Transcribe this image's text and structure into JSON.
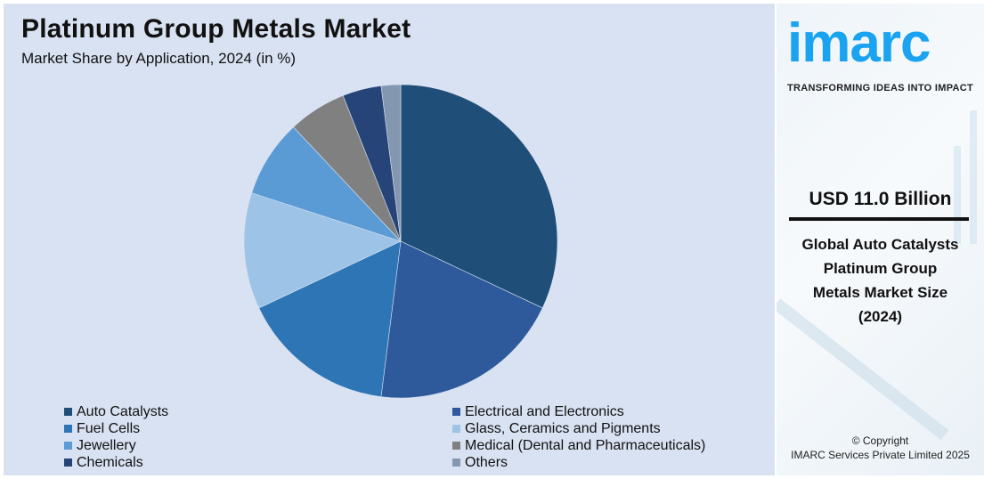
{
  "header": {
    "title": "Platinum Group Metals Market",
    "subtitle": "Market Share by Application, 2024 (in %)"
  },
  "sidebar": {
    "logo": "imarc",
    "tagline": "TRANSFORMING IDEAS INTO IMPACT",
    "value": "USD 11.0 Billion",
    "description_lines": [
      "Global Auto Catalysts",
      "Platinum Group",
      "Metals Market Size",
      "(2024)"
    ],
    "copyright_line1": "© Copyright",
    "copyright_line2": "IMARC Services Private Limited 2025",
    "accent_color": "#1aa3f0"
  },
  "chart_data": {
    "type": "pie",
    "title": "Platinum Group Metals Market",
    "subtitle": "Market Share by Application, 2024 (in %)",
    "categories": [
      "Auto Catalysts",
      "Electrical and Electronics",
      "Fuel Cells",
      "Glass, Ceramics and Pigments",
      "Jewellery",
      "Medical (Dental and Pharmaceuticals)",
      "Chemicals",
      "Others"
    ],
    "values": [
      32,
      20,
      16,
      12,
      8,
      6,
      4,
      2
    ],
    "colors": [
      "#1f4e79",
      "#2e5a9c",
      "#2e75b6",
      "#9dc3e6",
      "#5b9bd5",
      "#808080",
      "#264478",
      "#8497b0"
    ],
    "start_angle_deg": 0,
    "direction": "clockwise",
    "legend_position": "bottom"
  },
  "legend": {
    "items": [
      {
        "label": "Auto Catalysts",
        "color": "#1f4e79"
      },
      {
        "label": "Electrical and Electronics",
        "color": "#2e5a9c"
      },
      {
        "label": "Fuel Cells",
        "color": "#2e75b6"
      },
      {
        "label": "Glass, Ceramics and Pigments",
        "color": "#9dc3e6"
      },
      {
        "label": "Jewellery",
        "color": "#5b9bd5"
      },
      {
        "label": "Medical (Dental and Pharmaceuticals)",
        "color": "#808080"
      },
      {
        "label": "Chemicals",
        "color": "#264478"
      },
      {
        "label": "Others",
        "color": "#8497b0"
      }
    ]
  }
}
